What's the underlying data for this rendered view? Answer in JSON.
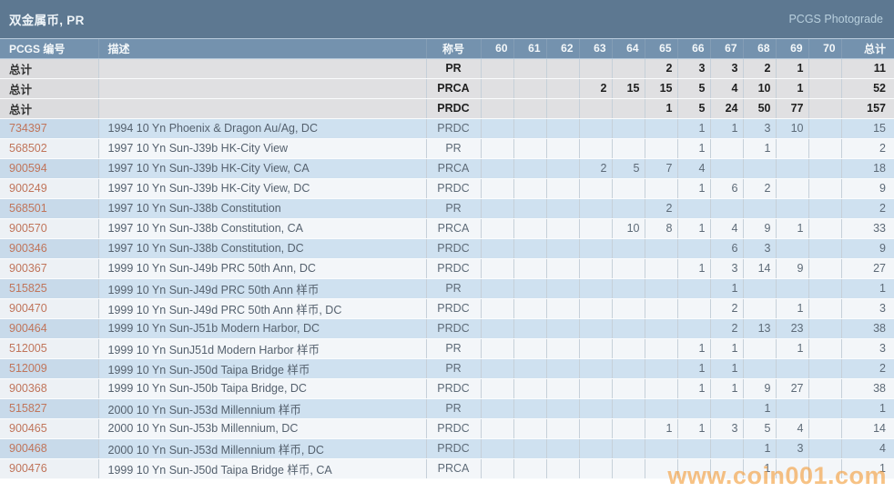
{
  "title_bar": {
    "title": "双金属币, PR",
    "link": "PCGS Photograde"
  },
  "watermark": "www.coin001.com",
  "colors": {
    "title_bar": "#5d7891",
    "header_bar": "#7492ae",
    "row_blue": "#cfe1f0",
    "row_white": "#f3f6f9",
    "row_total": "#e0e0e2",
    "link_number": "#c0755b",
    "watermark": "#f39d3a"
  },
  "table": {
    "headers": {
      "id": "PCGS 编号",
      "desc": "描述",
      "desig": "称号",
      "total": "总计"
    },
    "grade_columns": [
      "60",
      "61",
      "62",
      "63",
      "64",
      "65",
      "66",
      "67",
      "68",
      "69",
      "70"
    ],
    "rows": [
      {
        "type": "total",
        "label": "总计",
        "desc": "",
        "desig": "PR",
        "grades": {
          "65": 2,
          "66": 3,
          "67": 3,
          "68": 2,
          "69": 1
        },
        "total": 11
      },
      {
        "type": "total",
        "label": "总计",
        "desc": "",
        "desig": "PRCA",
        "grades": {
          "63": 2,
          "64": 15,
          "65": 15,
          "66": 5,
          "67": 4,
          "68": 10,
          "69": 1
        },
        "total": 52
      },
      {
        "type": "total",
        "label": "总计",
        "desc": "",
        "desig": "PRDC",
        "grades": {
          "65": 1,
          "66": 5,
          "67": 24,
          "68": 50,
          "69": 77
        },
        "total": 157
      },
      {
        "type": "coin",
        "label": "734397",
        "desc": "1994 10 Yn Phoenix & Dragon Au/Ag, DC",
        "desig": "PRDC",
        "grades": {
          "66": 1,
          "67": 1,
          "68": 3,
          "69": 10
        },
        "total": 15
      },
      {
        "type": "coin",
        "label": "568502",
        "desc": "1997 10 Yn Sun-J39b HK-City View",
        "desig": "PR",
        "grades": {
          "66": 1,
          "68": 1
        },
        "total": 2
      },
      {
        "type": "coin",
        "label": "900594",
        "desc": "1997 10 Yn Sun-J39b HK-City View, CA",
        "desig": "PRCA",
        "grades": {
          "63": 2,
          "64": 5,
          "65": 7,
          "66": 4
        },
        "total": 18
      },
      {
        "type": "coin",
        "label": "900249",
        "desc": "1997 10 Yn Sun-J39b HK-City View, DC",
        "desig": "PRDC",
        "grades": {
          "66": 1,
          "67": 6,
          "68": 2
        },
        "total": 9
      },
      {
        "type": "coin",
        "label": "568501",
        "desc": "1997 10 Yn Sun-J38b Constitution",
        "desig": "PR",
        "grades": {
          "65": 2
        },
        "total": 2
      },
      {
        "type": "coin",
        "label": "900570",
        "desc": "1997 10 Yn Sun-J38b Constitution, CA",
        "desig": "PRCA",
        "grades": {
          "64": 10,
          "65": 8,
          "66": 1,
          "67": 4,
          "68": 9,
          "69": 1
        },
        "total": 33
      },
      {
        "type": "coin",
        "label": "900346",
        "desc": "1997 10 Yn Sun-J38b Constitution, DC",
        "desig": "PRDC",
        "grades": {
          "67": 6,
          "68": 3
        },
        "total": 9
      },
      {
        "type": "coin",
        "label": "900367",
        "desc": "1999 10 Yn Sun-J49b PRC 50th Ann, DC",
        "desig": "PRDC",
        "grades": {
          "66": 1,
          "67": 3,
          "68": 14,
          "69": 9
        },
        "total": 27
      },
      {
        "type": "coin",
        "label": "515825",
        "desc": "1999 10 Yn Sun-J49d PRC 50th Ann 样币",
        "desig": "PR",
        "grades": {
          "67": 1
        },
        "total": 1
      },
      {
        "type": "coin",
        "label": "900470",
        "desc": "1999 10 Yn Sun-J49d PRC 50th Ann 样币, DC",
        "desig": "PRDC",
        "grades": {
          "67": 2,
          "69": 1
        },
        "total": 3
      },
      {
        "type": "coin",
        "label": "900464",
        "desc": "1999 10 Yn Sun-J51b Modern Harbor, DC",
        "desig": "PRDC",
        "grades": {
          "67": 2,
          "68": 13,
          "69": 23
        },
        "total": 38
      },
      {
        "type": "coin",
        "label": "512005",
        "desc": "1999 10 Yn SunJ51d Modern Harbor 样币",
        "desig": "PR",
        "grades": {
          "66": 1,
          "67": 1,
          "69": 1
        },
        "total": 3
      },
      {
        "type": "coin",
        "label": "512009",
        "desc": "1999 10 Yn Sun-J50d Taipa Bridge 样币",
        "desig": "PR",
        "grades": {
          "66": 1,
          "67": 1
        },
        "total": 2
      },
      {
        "type": "coin",
        "label": "900368",
        "desc": "1999 10 Yn Sun-J50b Taipa Bridge, DC",
        "desig": "PRDC",
        "grades": {
          "66": 1,
          "67": 1,
          "68": 9,
          "69": 27
        },
        "total": 38
      },
      {
        "type": "coin",
        "label": "515827",
        "desc": "2000 10 Yn Sun-J53d Millennium 样币",
        "desig": "PR",
        "grades": {
          "68": 1
        },
        "total": 1
      },
      {
        "type": "coin",
        "label": "900465",
        "desc": "2000 10 Yn Sun-J53b Millennium, DC",
        "desig": "PRDC",
        "grades": {
          "65": 1,
          "66": 1,
          "67": 3,
          "68": 5,
          "69": 4
        },
        "total": 14
      },
      {
        "type": "coin",
        "label": "900468",
        "desc": "2000 10 Yn Sun-J53d Millennium 样币, DC",
        "desig": "PRDC",
        "grades": {
          "68": 1,
          "69": 3
        },
        "total": 4
      },
      {
        "type": "coin",
        "label": "900476",
        "desc": "1999 10 Yn Sun-J50d Taipa Bridge 样币, CA",
        "desig": "PRCA",
        "grades": {
          "68": 1
        },
        "total": 1
      }
    ]
  }
}
